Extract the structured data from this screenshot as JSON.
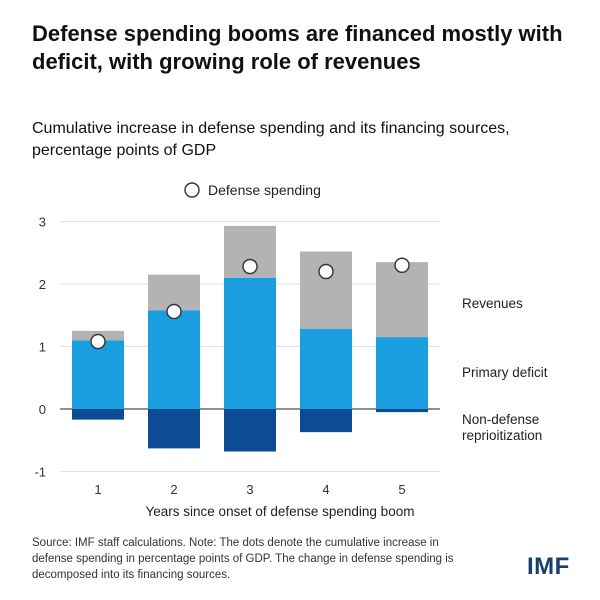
{
  "title": "Defense spending booms are financed mostly with deficit, with growing role of revenues",
  "subtitle": "Cumulative increase in defense spending and its financing sources, percentage points of GDP",
  "source": "Source: IMF staff calculations. Note: The dots denote the cumulative increase in defense spending in percentage points of GDP. The change in defense spending is decomposed into its financing sources.",
  "logo": "IMF",
  "colors": {
    "revenues": "#b3b3b3",
    "primary_deficit": "#1a9ee0",
    "non_defense": "#0d4b94",
    "dot_fill": "#ffffff",
    "dot_stroke": "#333333"
  },
  "chart_data": {
    "type": "bar",
    "stacked": true,
    "xlabel": "Years since onset of defense spending boom",
    "ylabel": "",
    "ylim": [
      -1,
      3
    ],
    "yticks": [
      -1,
      0,
      1,
      2,
      3
    ],
    "categories": [
      "1",
      "2",
      "3",
      "4",
      "5"
    ],
    "series": [
      {
        "name": "Primary deficit",
        "values": [
          1.1,
          1.58,
          2.1,
          1.28,
          1.15
        ]
      },
      {
        "name": "Revenues",
        "values": [
          0.15,
          0.57,
          0.83,
          1.24,
          1.2
        ]
      },
      {
        "name": "Non-defense reprioitization",
        "values": [
          -0.17,
          -0.63,
          -0.68,
          -0.37,
          -0.05
        ]
      }
    ],
    "dots": {
      "name": "Defense spending",
      "values": [
        1.08,
        1.56,
        2.28,
        2.2,
        2.3
      ]
    },
    "grid": false,
    "legend": "top"
  }
}
